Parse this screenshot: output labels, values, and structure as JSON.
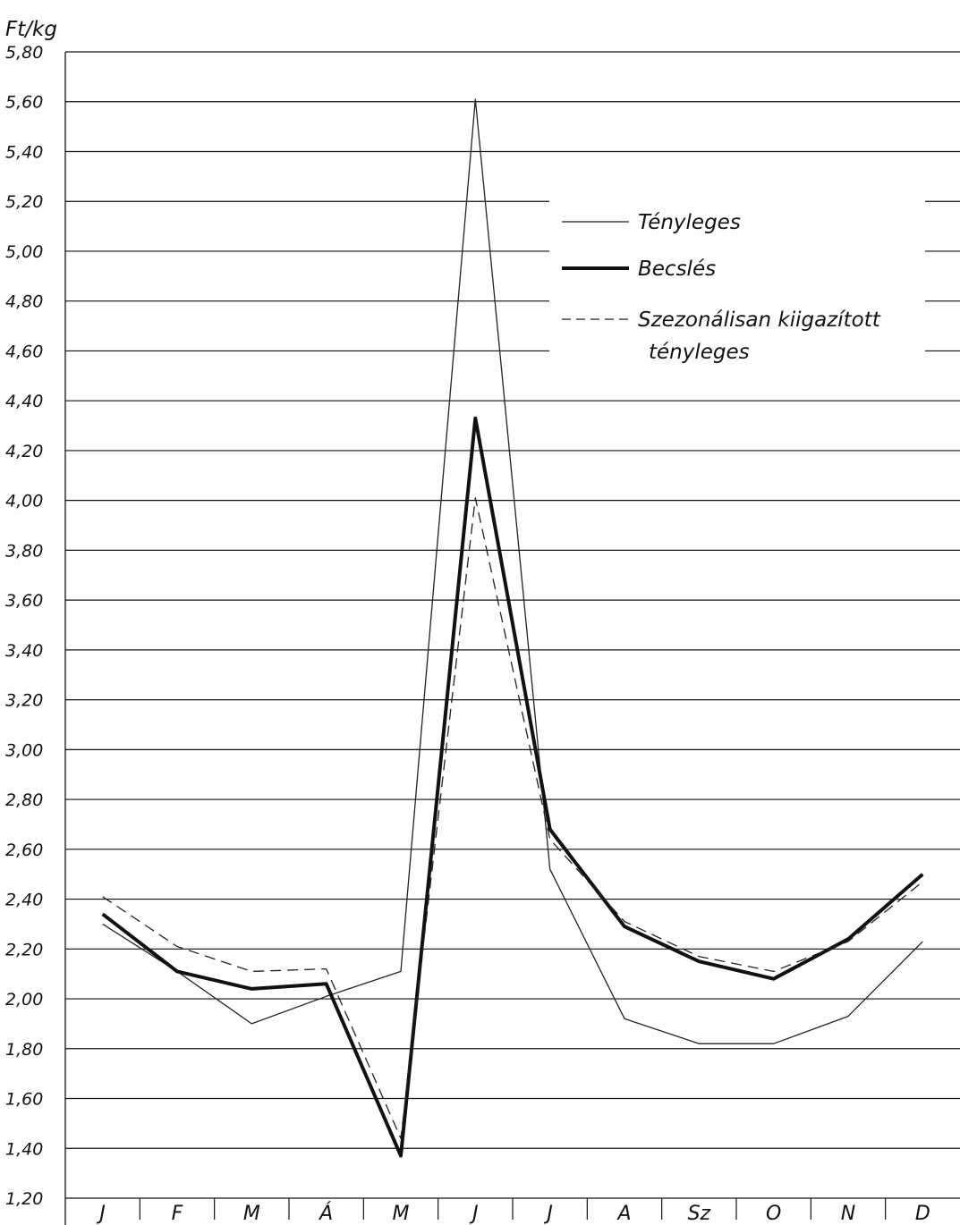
{
  "chart_data": {
    "type": "line",
    "ylabel": "Ft/kg",
    "ylim": [
      1.2,
      5.8
    ],
    "yticks": [
      "5,80",
      "5,60",
      "5,40",
      "5,20",
      "5,00",
      "4,80",
      "4,60",
      "4,40",
      "4,20",
      "4,00",
      "3,80",
      "3,60",
      "3,40",
      "3,20",
      "3,00",
      "2,80",
      "2,60",
      "2,40",
      "2,20",
      "2,00",
      "1,80",
      "1,60",
      "1,40",
      "1,20"
    ],
    "categories": [
      "J",
      "F",
      "M",
      "Á",
      "M",
      "J",
      "J",
      "A",
      "Sz",
      "O",
      "N",
      "D"
    ],
    "grid": true,
    "legend_position": "top-right",
    "series": [
      {
        "name": "Tényleges",
        "style": "thin-solid",
        "values": [
          2.3,
          2.11,
          1.9,
          2.01,
          2.11,
          5.61,
          2.52,
          1.92,
          1.82,
          1.82,
          1.93,
          2.23
        ]
      },
      {
        "name": "Becslés",
        "style": "thick-solid",
        "values": [
          2.34,
          2.11,
          2.04,
          2.06,
          1.37,
          4.33,
          2.68,
          2.29,
          2.15,
          2.08,
          2.24,
          2.5
        ]
      },
      {
        "name": "Szezonálisan kiigazított tényleges",
        "name_lines": [
          "Szezonálisan kiigazított",
          "tényleges"
        ],
        "style": "dashed",
        "values": [
          2.41,
          2.21,
          2.11,
          2.12,
          1.44,
          4.01,
          2.64,
          2.31,
          2.17,
          2.11,
          2.23,
          2.47
        ]
      }
    ]
  }
}
